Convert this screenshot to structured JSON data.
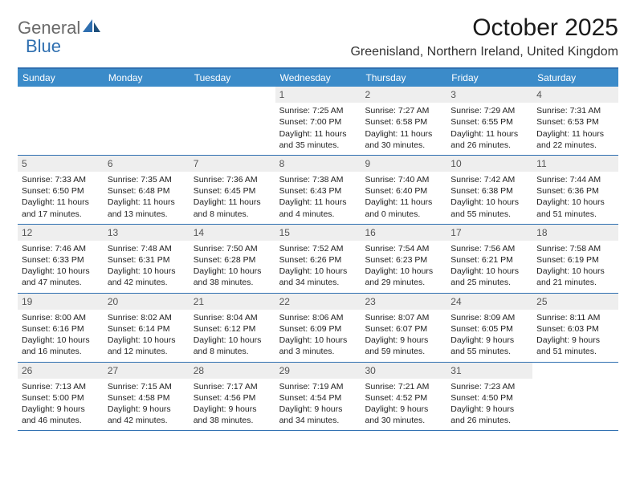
{
  "logo": {
    "text_general": "General",
    "text_blue": "Blue"
  },
  "title": "October 2025",
  "location": "Greenisland, Northern Ireland, United Kingdom",
  "colors": {
    "header_bg": "#3b8bc9",
    "header_border": "#2f6fb0",
    "daynum_bg": "#eeeeee",
    "logo_gray": "#6a6a6a",
    "logo_blue": "#2f6fb0"
  },
  "weekdays": [
    "Sunday",
    "Monday",
    "Tuesday",
    "Wednesday",
    "Thursday",
    "Friday",
    "Saturday"
  ],
  "weeks": [
    [
      null,
      null,
      null,
      {
        "d": "1",
        "sr": "7:25 AM",
        "ss": "7:00 PM",
        "dl": "11 hours and 35 minutes."
      },
      {
        "d": "2",
        "sr": "7:27 AM",
        "ss": "6:58 PM",
        "dl": "11 hours and 30 minutes."
      },
      {
        "d": "3",
        "sr": "7:29 AM",
        "ss": "6:55 PM",
        "dl": "11 hours and 26 minutes."
      },
      {
        "d": "4",
        "sr": "7:31 AM",
        "ss": "6:53 PM",
        "dl": "11 hours and 22 minutes."
      }
    ],
    [
      {
        "d": "5",
        "sr": "7:33 AM",
        "ss": "6:50 PM",
        "dl": "11 hours and 17 minutes."
      },
      {
        "d": "6",
        "sr": "7:35 AM",
        "ss": "6:48 PM",
        "dl": "11 hours and 13 minutes."
      },
      {
        "d": "7",
        "sr": "7:36 AM",
        "ss": "6:45 PM",
        "dl": "11 hours and 8 minutes."
      },
      {
        "d": "8",
        "sr": "7:38 AM",
        "ss": "6:43 PM",
        "dl": "11 hours and 4 minutes."
      },
      {
        "d": "9",
        "sr": "7:40 AM",
        "ss": "6:40 PM",
        "dl": "11 hours and 0 minutes."
      },
      {
        "d": "10",
        "sr": "7:42 AM",
        "ss": "6:38 PM",
        "dl": "10 hours and 55 minutes."
      },
      {
        "d": "11",
        "sr": "7:44 AM",
        "ss": "6:36 PM",
        "dl": "10 hours and 51 minutes."
      }
    ],
    [
      {
        "d": "12",
        "sr": "7:46 AM",
        "ss": "6:33 PM",
        "dl": "10 hours and 47 minutes."
      },
      {
        "d": "13",
        "sr": "7:48 AM",
        "ss": "6:31 PM",
        "dl": "10 hours and 42 minutes."
      },
      {
        "d": "14",
        "sr": "7:50 AM",
        "ss": "6:28 PM",
        "dl": "10 hours and 38 minutes."
      },
      {
        "d": "15",
        "sr": "7:52 AM",
        "ss": "6:26 PM",
        "dl": "10 hours and 34 minutes."
      },
      {
        "d": "16",
        "sr": "7:54 AM",
        "ss": "6:23 PM",
        "dl": "10 hours and 29 minutes."
      },
      {
        "d": "17",
        "sr": "7:56 AM",
        "ss": "6:21 PM",
        "dl": "10 hours and 25 minutes."
      },
      {
        "d": "18",
        "sr": "7:58 AM",
        "ss": "6:19 PM",
        "dl": "10 hours and 21 minutes."
      }
    ],
    [
      {
        "d": "19",
        "sr": "8:00 AM",
        "ss": "6:16 PM",
        "dl": "10 hours and 16 minutes."
      },
      {
        "d": "20",
        "sr": "8:02 AM",
        "ss": "6:14 PM",
        "dl": "10 hours and 12 minutes."
      },
      {
        "d": "21",
        "sr": "8:04 AM",
        "ss": "6:12 PM",
        "dl": "10 hours and 8 minutes."
      },
      {
        "d": "22",
        "sr": "8:06 AM",
        "ss": "6:09 PM",
        "dl": "10 hours and 3 minutes."
      },
      {
        "d": "23",
        "sr": "8:07 AM",
        "ss": "6:07 PM",
        "dl": "9 hours and 59 minutes."
      },
      {
        "d": "24",
        "sr": "8:09 AM",
        "ss": "6:05 PM",
        "dl": "9 hours and 55 minutes."
      },
      {
        "d": "25",
        "sr": "8:11 AM",
        "ss": "6:03 PM",
        "dl": "9 hours and 51 minutes."
      }
    ],
    [
      {
        "d": "26",
        "sr": "7:13 AM",
        "ss": "5:00 PM",
        "dl": "9 hours and 46 minutes."
      },
      {
        "d": "27",
        "sr": "7:15 AM",
        "ss": "4:58 PM",
        "dl": "9 hours and 42 minutes."
      },
      {
        "d": "28",
        "sr": "7:17 AM",
        "ss": "4:56 PM",
        "dl": "9 hours and 38 minutes."
      },
      {
        "d": "29",
        "sr": "7:19 AM",
        "ss": "4:54 PM",
        "dl": "9 hours and 34 minutes."
      },
      {
        "d": "30",
        "sr": "7:21 AM",
        "ss": "4:52 PM",
        "dl": "9 hours and 30 minutes."
      },
      {
        "d": "31",
        "sr": "7:23 AM",
        "ss": "4:50 PM",
        "dl": "9 hours and 26 minutes."
      },
      null
    ]
  ],
  "labels": {
    "sunrise": "Sunrise:",
    "sunset": "Sunset:",
    "daylight": "Daylight:"
  }
}
